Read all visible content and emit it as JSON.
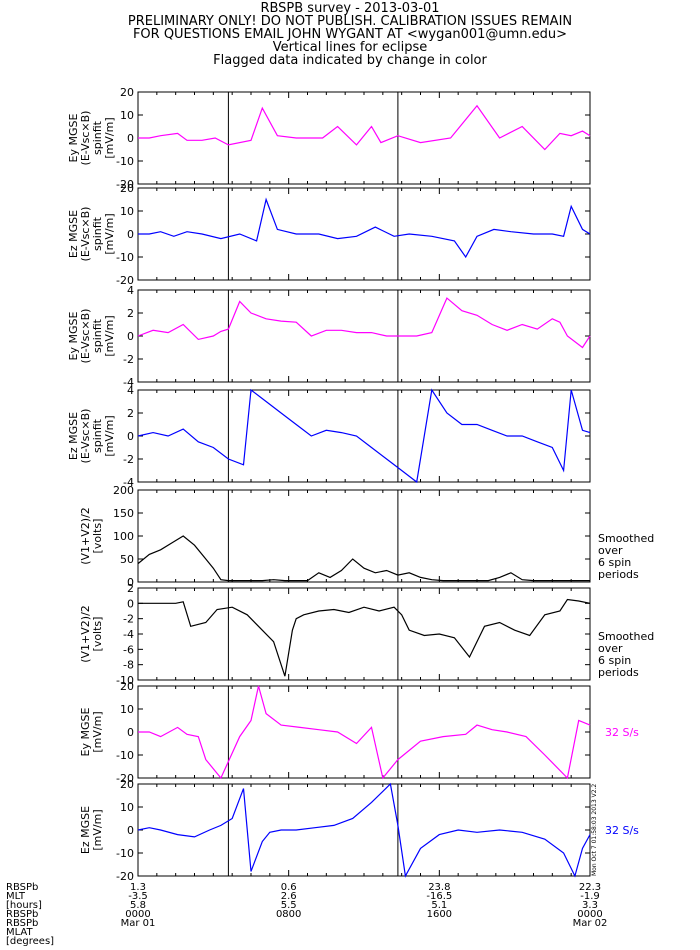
{
  "header": {
    "title": "RBSPB survey - 2013-03-01",
    "line2": "PRELIMINARY ONLY! DO NOT PUBLISH. CALIBRATION ISSUES REMAIN",
    "line3": "FOR QUESTIONS EMAIL JOHN WYGANT AT <wygan001@umn.edu>",
    "line4": "Vertical lines for eclipse",
    "line5": "Flagged data indicated by change in color"
  },
  "colors": {
    "magenta": "#ff00ff",
    "blue": "#0000ff",
    "black": "#000000"
  },
  "chart_data": [
    {
      "type": "line",
      "ylabel": [
        "Ey MGSE",
        "(E-Vsc×B)",
        "spinfit",
        "[mV/m]"
      ],
      "ylim": [
        -20,
        20
      ],
      "yticks": [
        -20,
        -10,
        0,
        10,
        20
      ],
      "color": "#ff00ff",
      "note": "",
      "series": [
        {
          "x": [
            0,
            0.6,
            1.2,
            2.1,
            2.6,
            3.4,
            4.1,
            4.8,
            6.0,
            6.6,
            7.4,
            8.4,
            9.8,
            10.6,
            11.6,
            12.4,
            12.9,
            13.8,
            15.0,
            16.6,
            18.0,
            19.2,
            20.4,
            21.6,
            22.4,
            23.0,
            23.6,
            24.0
          ],
          "y": [
            0,
            0,
            1,
            2,
            -1,
            -1,
            0,
            -3,
            -1,
            13,
            1,
            0,
            0,
            5,
            -3,
            5,
            -2,
            1,
            -2,
            0,
            14,
            0,
            5,
            -5,
            2,
            1,
            3,
            1
          ]
        }
      ]
    },
    {
      "type": "line",
      "ylabel": [
        "Ez MGSE",
        "(E-Vsc×B)",
        "spinfit",
        "[mV/m]"
      ],
      "ylim": [
        -20,
        20
      ],
      "yticks": [
        -20,
        -10,
        0,
        10,
        20
      ],
      "color": "#0000ff",
      "note": "",
      "series": [
        {
          "x": [
            0,
            0.6,
            1.2,
            1.9,
            2.6,
            3.4,
            4.4,
            5.4,
            6.3,
            6.8,
            7.4,
            8.4,
            9.6,
            10.6,
            11.6,
            12.6,
            13.6,
            14.4,
            15.6,
            16.8,
            17.4,
            18.0,
            18.9,
            19.8,
            21.0,
            22.0,
            22.6,
            23.0,
            23.6,
            24.0
          ],
          "y": [
            0,
            0,
            1,
            -1,
            1,
            0,
            -2,
            0,
            -3,
            15,
            2,
            0,
            0,
            -2,
            -1,
            3,
            -1,
            0,
            -1,
            -3,
            -10,
            -1,
            2,
            1,
            0,
            0,
            -1,
            12,
            2,
            0
          ]
        }
      ]
    },
    {
      "type": "line",
      "ylabel": [
        "Ey MGSE",
        "(E-Vsc×B)",
        "spinfit",
        "[mV/m]"
      ],
      "ylim": [
        -4,
        4
      ],
      "yticks": [
        -4,
        -2,
        0,
        2,
        4
      ],
      "color": "#ff00ff",
      "note": "",
      "series": [
        {
          "x": [
            0,
            0.8,
            1.6,
            2.4,
            3.2,
            4.0,
            4.4,
            4.8,
            5.4,
            6.0,
            6.8,
            7.6,
            8.4,
            9.2,
            10.0,
            10.8,
            11.6,
            12.4,
            13.2,
            14.0,
            14.8,
            15.6,
            16.4,
            17.2,
            18.0,
            18.8,
            19.6,
            20.4,
            21.2,
            22.0,
            22.4,
            22.8,
            23.6,
            24.0
          ],
          "y": [
            0,
            0.5,
            0.3,
            1,
            -0.3,
            0,
            0.4,
            0.6,
            3,
            2,
            1.5,
            1.3,
            1.2,
            0,
            0.5,
            0.5,
            0.3,
            0.3,
            0,
            0,
            0,
            0.3,
            3.3,
            2.2,
            1.8,
            1,
            0.5,
            1,
            0.6,
            1.5,
            1.2,
            0,
            -1,
            0
          ]
        }
      ]
    },
    {
      "type": "line",
      "ylabel": [
        "Ez MGSE",
        "(E-Vsc×B)",
        "spinfit",
        "[mV/m]"
      ],
      "ylim": [
        -4,
        4
      ],
      "yticks": [
        -4,
        -2,
        0,
        2,
        4
      ],
      "color": "#0000ff",
      "note": "",
      "series": [
        {
          "x": [
            0,
            0.8,
            1.6,
            2.4,
            3.2,
            4.0,
            4.8,
            5.6,
            6.0,
            6.8,
            7.6,
            8.4,
            9.2,
            10.0,
            10.8,
            11.6,
            12.4,
            13.2,
            14.0,
            14.8,
            15.6,
            16.4,
            17.2,
            18.0,
            18.8,
            19.6,
            20.4,
            21.2,
            22.0,
            22.6,
            23.0,
            23.6,
            24.0
          ],
          "y": [
            0,
            0.3,
            0,
            0.6,
            -0.5,
            -1,
            -2,
            -2.5,
            4,
            3,
            2,
            1,
            0,
            0.5,
            0.3,
            0,
            -1,
            -2,
            -3,
            -4,
            4,
            2,
            1,
            1,
            0.5,
            0,
            0,
            -0.5,
            -1,
            -3,
            4,
            0.5,
            0.3
          ]
        }
      ]
    },
    {
      "type": "line",
      "ylabel": [
        "(V1+V2)/2",
        "[volts]"
      ],
      "ylim": [
        0,
        200
      ],
      "yticks": [
        0,
        50,
        100,
        150,
        200
      ],
      "color": "#000000",
      "note": "Smoothed over 6 spin periods",
      "series": [
        {
          "x": [
            0,
            0.6,
            1.2,
            1.8,
            2.4,
            3.0,
            3.6,
            4.0,
            4.4,
            4.8,
            5.4,
            6.0,
            6.6,
            7.2,
            7.8,
            8.4,
            9.0,
            9.6,
            10.2,
            10.8,
            11.4,
            12.0,
            12.6,
            13.2,
            13.8,
            14.4,
            15.0,
            15.6,
            16.2,
            16.8,
            17.4,
            18.0,
            18.6,
            19.2,
            19.8,
            20.4,
            21.0,
            21.6,
            22.2,
            22.8,
            23.4,
            24.0
          ],
          "y": [
            40,
            60,
            70,
            85,
            100,
            80,
            50,
            30,
            5,
            3,
            3,
            3,
            3,
            5,
            3,
            3,
            3,
            20,
            10,
            25,
            50,
            30,
            20,
            25,
            15,
            20,
            10,
            5,
            3,
            3,
            3,
            3,
            3,
            10,
            20,
            5,
            3,
            3,
            3,
            3,
            3,
            3
          ]
        }
      ]
    },
    {
      "type": "line",
      "ylabel": [
        "(V1+V2)/2",
        "[volts]"
      ],
      "ylim": [
        -10,
        2
      ],
      "yticks": [
        -10,
        -8,
        -6,
        -4,
        -2,
        0,
        2
      ],
      "color": "#000000",
      "note": "Smoothed over 6 spin periods",
      "series": [
        {
          "x": [
            0,
            1.2,
            2.0,
            2.4,
            2.8,
            3.6,
            4.2,
            5.0,
            5.8,
            6.6,
            7.2,
            7.8,
            8.2,
            8.4,
            8.8,
            9.6,
            10.4,
            11.2,
            12.0,
            12.8,
            13.6,
            14.0,
            14.4,
            15.2,
            16.0,
            16.8,
            17.6,
            18.4,
            19.2,
            20.0,
            20.8,
            21.6,
            22.4,
            22.8,
            23.4,
            24.0
          ],
          "y": [
            0,
            0,
            0,
            0.2,
            -3,
            -2.5,
            -0.8,
            -0.5,
            -1.5,
            -3.5,
            -5,
            -9.5,
            -3.5,
            -2,
            -1.5,
            -1,
            -0.8,
            -1.2,
            -0.5,
            -1,
            -0.5,
            -1.5,
            -3.5,
            -4.2,
            -4,
            -4.5,
            -7,
            -3,
            -2.5,
            -3.5,
            -4.2,
            -1.5,
            -1,
            0.5,
            0.3,
            0
          ]
        }
      ]
    },
    {
      "type": "line",
      "ylabel": [
        "Ey MGSE",
        "[mV/m]"
      ],
      "ylim": [
        -20,
        20
      ],
      "yticks": [
        -20,
        -10,
        0,
        10,
        20
      ],
      "color": "#ff00ff",
      "note": "32 S/s",
      "series": [
        {
          "x": [
            0,
            0.6,
            1.2,
            2.1,
            2.6,
            3.2,
            3.6,
            4.4,
            5.4,
            6.0,
            6.4,
            6.8,
            7.6,
            8.6,
            9.6,
            10.6,
            11.6,
            12.4,
            13.0,
            13.8,
            15.0,
            16.2,
            17.4,
            18.0,
            18.8,
            19.6,
            20.6,
            21.6,
            22.8,
            23.4,
            24.0
          ],
          "y": [
            0,
            0,
            -2,
            2,
            -1,
            -2,
            -12,
            -20,
            -2,
            5,
            20,
            8,
            3,
            2,
            1,
            0,
            -5,
            2,
            -20,
            -12,
            -4,
            -2,
            -1,
            3,
            1,
            0,
            -2,
            -10,
            -20,
            5,
            3
          ]
        }
      ]
    },
    {
      "type": "line",
      "ylabel": [
        "Ez MGSE",
        "[mV/m]"
      ],
      "ylim": [
        -20,
        20
      ],
      "yticks": [
        -20,
        -10,
        0,
        10,
        20
      ],
      "color": "#0000ff",
      "note": "32 S/s",
      "series": [
        {
          "x": [
            0,
            0.6,
            1.2,
            2.1,
            3.0,
            3.8,
            4.4,
            5.0,
            5.6,
            6.0,
            6.6,
            7.0,
            7.6,
            8.4,
            9.4,
            10.4,
            11.4,
            12.4,
            13.4,
            13.8,
            14.2,
            15.0,
            16.0,
            17.0,
            18.0,
            19.2,
            20.4,
            21.6,
            22.6,
            23.2,
            23.6,
            24.0
          ],
          "y": [
            0,
            1,
            0,
            -2,
            -3,
            0,
            2,
            5,
            18,
            -18,
            -5,
            -1,
            0,
            0,
            1,
            2,
            5,
            12,
            20,
            2,
            -20,
            -8,
            -2,
            0,
            -1,
            0,
            -1,
            -4,
            -10,
            -20,
            -8,
            -2
          ]
        }
      ]
    }
  ],
  "x_axis": {
    "row_labels": [
      "RBSPb",
      "MLT",
      "[hours]",
      "RBSPb",
      "RBSPb",
      "MLAT",
      "[degrees]"
    ],
    "ticks": [
      {
        "x": 0,
        "lines": [
          "1.3",
          "-3.5",
          "5.8",
          "0000",
          "Mar 01"
        ]
      },
      {
        "x": 8,
        "lines": [
          "0.6",
          "2.6",
          "5.5",
          "0800",
          ""
        ]
      },
      {
        "x": 16,
        "lines": [
          "23.8",
          "-16.5",
          "5.1",
          "1600",
          ""
        ]
      },
      {
        "x": 24,
        "lines": [
          "22.3",
          "-1.9",
          "3.3",
          "0000",
          "Mar 02"
        ]
      }
    ],
    "range": [
      0,
      24
    ]
  },
  "eclipse_lines": [
    4.8,
    13.8
  ],
  "side_stamp": "Mon Oct 7 01:58:03 2013 V2.2"
}
